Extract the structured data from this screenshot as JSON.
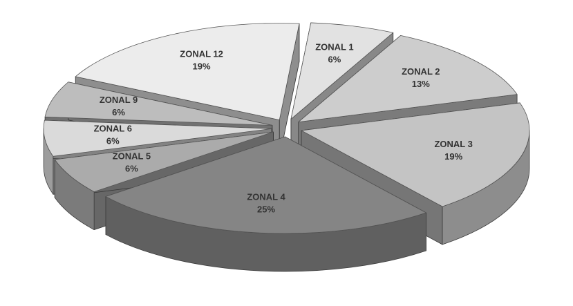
{
  "chart_data": {
    "type": "pie",
    "categories": [
      "ZONAL 1",
      "ZONAL 2",
      "ZONAL 3",
      "ZONAL 4",
      "ZONAL 5",
      "ZONAL 6",
      "ZONAL 9",
      "ZONAL 12"
    ],
    "values": [
      6,
      13,
      19,
      25,
      6,
      6,
      6,
      19
    ],
    "value_labels": [
      "6%",
      "13%",
      "19%",
      "25%",
      "6%",
      "6%",
      "6%",
      "19%"
    ],
    "colors": [
      "#e2e2e2",
      "#cdcdcd",
      "#c4c4c4",
      "#858585",
      "#ababab",
      "#dadada",
      "#bdbdbd",
      "#ececec"
    ]
  }
}
